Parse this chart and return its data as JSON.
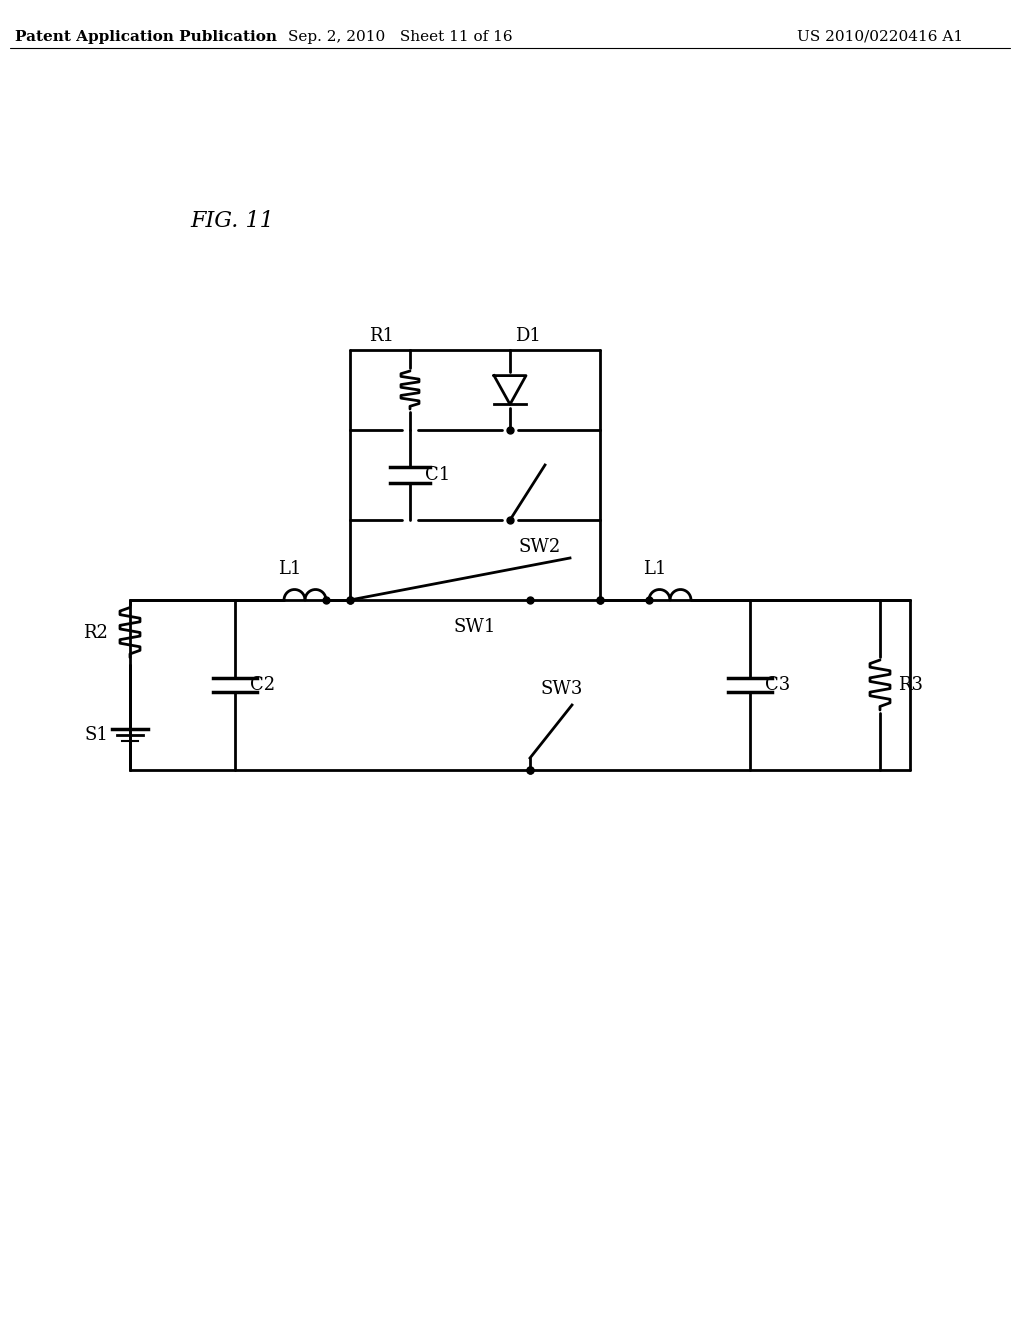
{
  "fig_label": "FIG. 11",
  "header_left": "Patent Application Publication",
  "header_mid": "Sep. 2, 2010   Sheet 11 of 16",
  "header_right": "US 2010/0220416 A1",
  "bg_color": "#ffffff",
  "line_color": "#000000",
  "line_width": 2.0,
  "font_size_header": 11,
  "font_size_label": 13,
  "font_size_fig": 16
}
